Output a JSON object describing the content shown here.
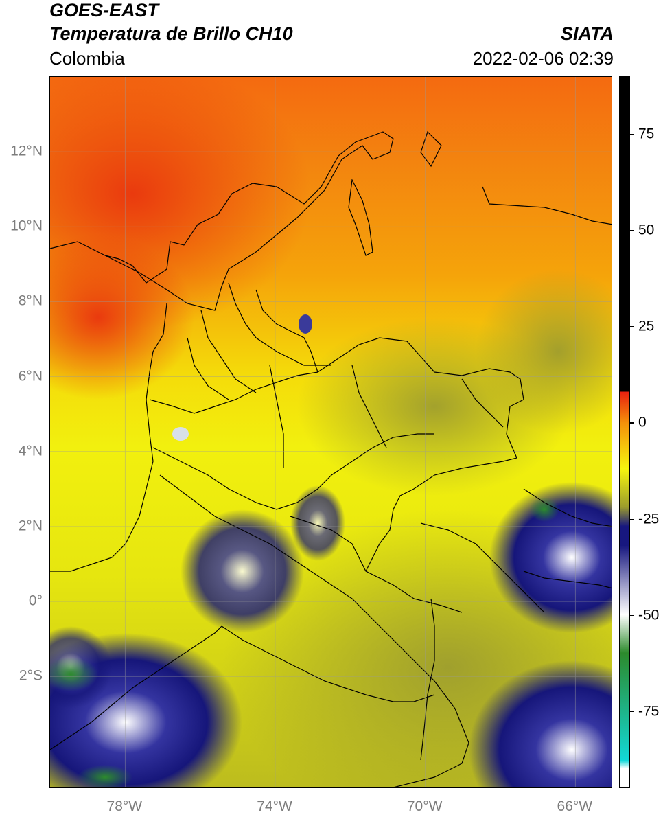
{
  "header": {
    "satellite": "GOES-EAST",
    "product": "Temperatura de Brillo CH10",
    "agency": "SIATA",
    "region": "Colombia",
    "datetime": "2022-02-06 02:39"
  },
  "map": {
    "lon_range": [
      -80,
      -65
    ],
    "lat_range": [
      -5,
      14
    ],
    "lat_ticks": [
      {
        "value": 12,
        "label": "12°N"
      },
      {
        "value": 10,
        "label": "10°N"
      },
      {
        "value": 8,
        "label": "8°N"
      },
      {
        "value": 6,
        "label": "6°N"
      },
      {
        "value": 4,
        "label": "4°N"
      },
      {
        "value": 2,
        "label": "2°N"
      },
      {
        "value": 0,
        "label": "0°"
      },
      {
        "value": -2,
        "label": "2°S"
      }
    ],
    "lon_ticks": [
      {
        "value": -78,
        "label": "78°W"
      },
      {
        "value": -74,
        "label": "74°W"
      },
      {
        "value": -70,
        "label": "70°W"
      },
      {
        "value": -66,
        "label": "66°W"
      }
    ],
    "gridlines": true
  },
  "colorbar": {
    "range": [
      -95,
      90
    ],
    "ticks": [
      {
        "value": 75,
        "label": "75"
      },
      {
        "value": 50,
        "label": "50"
      },
      {
        "value": 25,
        "label": "25"
      },
      {
        "value": 0,
        "label": "0"
      },
      {
        "value": -25,
        "label": "-25"
      },
      {
        "value": -50,
        "label": "-50"
      },
      {
        "value": -75,
        "label": "-75"
      }
    ],
    "colors": {
      "black": "#000000",
      "red": "#e8200f",
      "orange": "#f5900a",
      "yellow": "#f6f50e",
      "olive": "#9c9c2c",
      "navy": "#17177f",
      "white": "#ffffff",
      "green": "#2c8a2c",
      "cyan": "#12d8d8"
    }
  }
}
